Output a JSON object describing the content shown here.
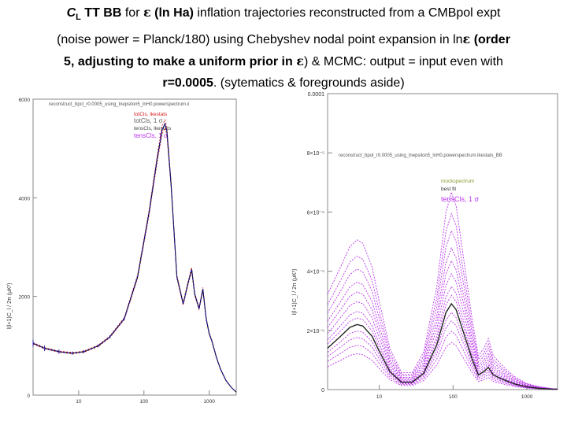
{
  "slide": {
    "title_line1_a": "C",
    "title_line1_a_sub": "L",
    "title_line1_b": " TT BB",
    "title_line1_c": " for ",
    "title_line1_eps": "ε",
    "title_line1_d": " (ln Ha)",
    "title_line1_e": " inflation trajectories reconstructed from a CMBpol expt",
    "title_line2_a": "(noise power = Planck/180) using Chebyshev nodal point expansion in ln",
    "title_line2_eps": "ε",
    "title_line2_b": " (order",
    "title_line3_a": "5, adjusting to make a uniform prior in ",
    "title_line3_eps": "ε",
    "title_line3_b": ") & MCMC: output = input even with",
    "title_line4_a": "r=0.0005",
    "title_line4_b": ". (sytematics & foregrounds aside)"
  },
  "colors": {
    "truth": "#000000",
    "tt_band": "#d42020",
    "tt_mean": "#1c1ca8",
    "tens_band": "#bb33ee",
    "bb_mean": "#222222",
    "light_label": "#666666"
  },
  "chart_data": [
    {
      "type": "line",
      "panel": "TT",
      "file_label": "reconstruct_bpcl_r0.0005_using_lnepsilon5_lnH0.powerspectrum.ii",
      "legend": [
        "totCls, lkestats",
        "totCls, 1 σ",
        "tensCls, lkestats",
        "tensCls, 1 σ"
      ],
      "ylabel": "l(l+1)C_l / 2π (μK²)",
      "xscale": "log",
      "xlim": [
        2,
        2600
      ],
      "ylim": [
        0,
        6000
      ],
      "yticks": [
        "0",
        "2000",
        "4000",
        "6000"
      ],
      "xticks": [
        "10",
        "100",
        "1000"
      ],
      "x": [
        2,
        3,
        5,
        8,
        12,
        20,
        30,
        50,
        80,
        120,
        160,
        190,
        210,
        225,
        260,
        320,
        400,
        470,
        540,
        600,
        700,
        800,
        900,
        1000,
        1100,
        1300,
        1500,
        1800,
        2200,
        2600
      ],
      "y": [
        1050,
        950,
        880,
        850,
        880,
        1000,
        1180,
        1550,
        2400,
        3700,
        4800,
        5380,
        5500,
        5350,
        4300,
        2400,
        1850,
        2250,
        2550,
        2050,
        1750,
        2150,
        1550,
        1250,
        1100,
        750,
        520,
        300,
        150,
        60
      ],
      "error_fraction_low_l": [
        0.07,
        0.06,
        0.05,
        0.04,
        0.035,
        0.03,
        0.025,
        0.02
      ]
    },
    {
      "type": "line",
      "panel": "BB",
      "file_label": "reconstruct_bpol_r0.0005_using_lnepsilon5_lnH0.powerspectrum.lkestats_BB",
      "legend": [
        "mockspectrum",
        "best fit",
        "tensCls, 1 σ"
      ],
      "ylabel": "l(l+1)C_l / 2π (μK²)",
      "xscale": "log",
      "xlim": [
        2,
        2600
      ],
      "ylim": [
        0,
        0.0001
      ],
      "yticks": [
        "0",
        "2×10⁻⁵",
        "4×10⁻⁵",
        "6×10⁻⁵",
        "8×10⁻⁵",
        "0.0001"
      ],
      "xticks": [
        "10",
        "100",
        "1000"
      ],
      "x": [
        2,
        3,
        4,
        5,
        6,
        8,
        10,
        14,
        20,
        28,
        40,
        60,
        80,
        95,
        110,
        140,
        180,
        220,
        260,
        300,
        350,
        420,
        520,
        700,
        1000,
        1500,
        2200,
        2600
      ],
      "series": [
        {
          "name": "best fit",
          "values": [
            1.4e-05,
            1.8e-05,
            2.1e-05,
            2.2e-05,
            2.15e-05,
            1.8e-05,
            1.3e-05,
            6e-06,
            2.5e-06,
            2.5e-06,
            5.5e-06,
            1.5e-05,
            2.6e-05,
            2.9e-05,
            2.7e-05,
            1.9e-05,
            1.05e-05,
            5e-06,
            6e-06,
            7.5e-06,
            5e-06,
            4e-06,
            3e-06,
            1.8e-06,
            9e-07,
            4e-07,
            1.5e-07,
            1e-07
          ]
        }
      ],
      "band_scales": [
        0.55,
        0.68,
        0.8,
        0.9,
        1.1,
        1.2,
        1.35,
        1.5,
        1.65,
        1.85,
        2.05,
        2.3
      ]
    }
  ]
}
